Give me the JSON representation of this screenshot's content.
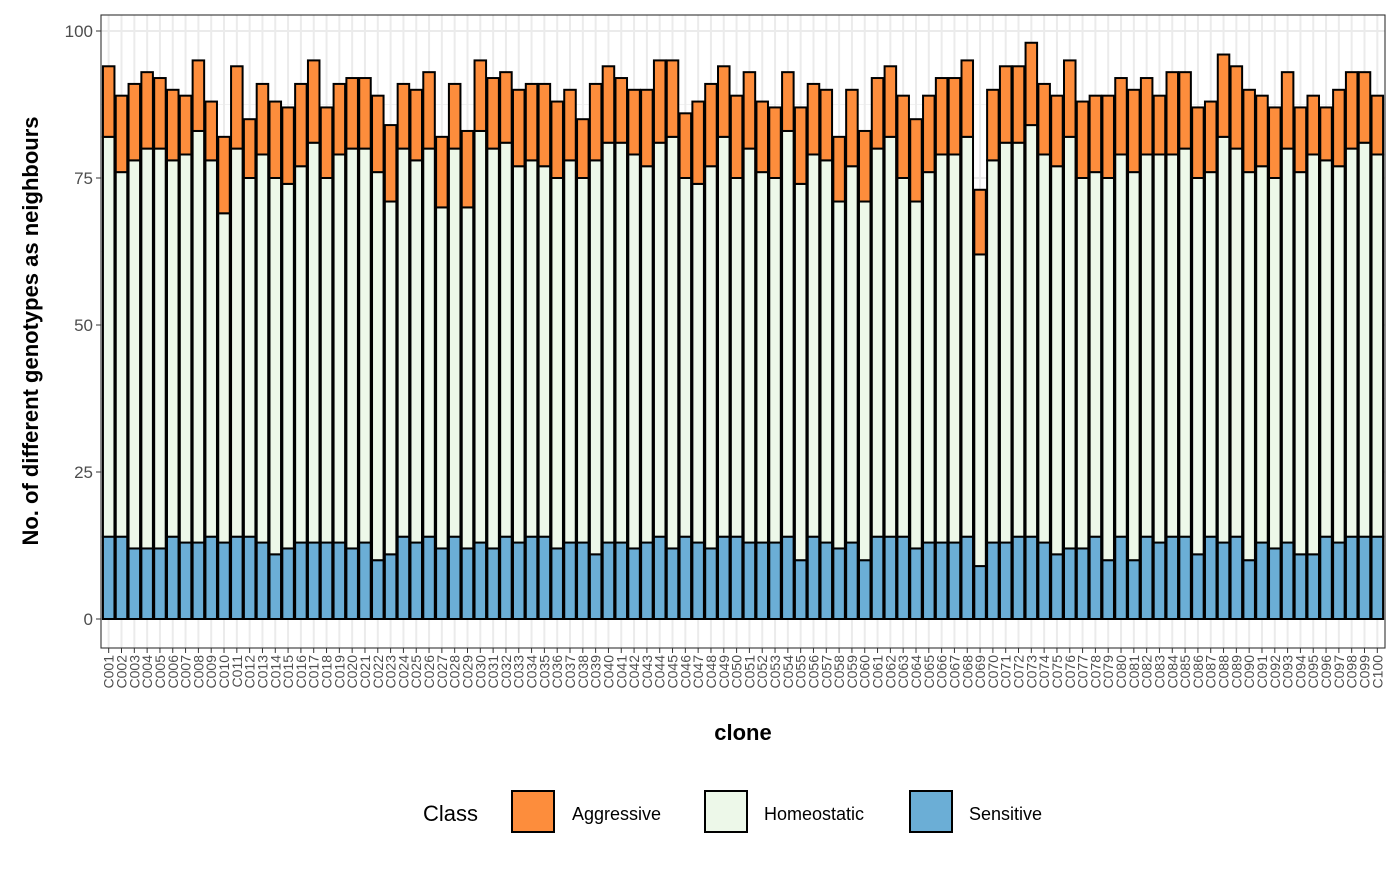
{
  "chart_data": {
    "type": "bar",
    "stacked": true,
    "xlabel": "clone",
    "ylabel": "No. of different genotypes as neighbours",
    "ylim": [
      -3,
      102
    ],
    "yticks": [
      0,
      25,
      50,
      75,
      100
    ],
    "ytick_labels": [
      "0",
      "25",
      "50",
      "75",
      "100"
    ],
    "grid": true,
    "legend": {
      "title": "Class",
      "placement": "bottom",
      "entries": [
        "Aggressive",
        "Homeostatic",
        "Sensitive"
      ]
    },
    "colors": {
      "Aggressive": "#fd8d3c",
      "Homeostatic": "#edf8e9",
      "Sensitive": "#6baed6"
    },
    "categories": [
      "C001",
      "C002",
      "C003",
      "C004",
      "C005",
      "C006",
      "C007",
      "C008",
      "C009",
      "C010",
      "C011",
      "C012",
      "C013",
      "C014",
      "C015",
      "C016",
      "C017",
      "C018",
      "C019",
      "C020",
      "C021",
      "C022",
      "C023",
      "C024",
      "C025",
      "C026",
      "C027",
      "C028",
      "C029",
      "C030",
      "C031",
      "C032",
      "C033",
      "C034",
      "C035",
      "C036",
      "C037",
      "C038",
      "C039",
      "C040",
      "C041",
      "C042",
      "C043",
      "C044",
      "C045",
      "C046",
      "C047",
      "C048",
      "C049",
      "C050",
      "C051",
      "C052",
      "C053",
      "C054",
      "C055",
      "C056",
      "C057",
      "C058",
      "C059",
      "C060",
      "C061",
      "C062",
      "C063",
      "C064",
      "C065",
      "C066",
      "C067",
      "C068",
      "C069",
      "C070",
      "C071",
      "C072",
      "C073",
      "C074",
      "C075",
      "C076",
      "C077",
      "C078",
      "C079",
      "C080",
      "C081",
      "C082",
      "C083",
      "C084",
      "C085",
      "C086",
      "C087",
      "C088",
      "C089",
      "C090",
      "C091",
      "C092",
      "C093",
      "C094",
      "C095",
      "C096",
      "C097",
      "C098",
      "C099",
      "C100"
    ],
    "series": [
      {
        "name": "Sensitive",
        "values": [
          14,
          14,
          12,
          12,
          12,
          14,
          13,
          13,
          14,
          13,
          14,
          14,
          13,
          11,
          12,
          13,
          13,
          13,
          13,
          12,
          13,
          10,
          11,
          14,
          13,
          14,
          12,
          14,
          12,
          13,
          12,
          14,
          13,
          14,
          14,
          12,
          13,
          13,
          11,
          13,
          13,
          12,
          13,
          14,
          12,
          14,
          13,
          12,
          14,
          14,
          13,
          13,
          13,
          14,
          10,
          14,
          13,
          12,
          13,
          10,
          14,
          14,
          14,
          12,
          13,
          13,
          13,
          14,
          9,
          13,
          13,
          14,
          14,
          13,
          11,
          12,
          12,
          14,
          10,
          14,
          10,
          14,
          13,
          14,
          14,
          11,
          14,
          13,
          14,
          10,
          13,
          12,
          13,
          11,
          11,
          14,
          13,
          14,
          14,
          14
        ]
      },
      {
        "name": "Homeostatic",
        "values": [
          68,
          62,
          66,
          68,
          68,
          64,
          66,
          70,
          64,
          56,
          66,
          61,
          66,
          64,
          62,
          64,
          68,
          62,
          66,
          68,
          67,
          66,
          60,
          66,
          65,
          66,
          58,
          66,
          58,
          70,
          68,
          67,
          64,
          64,
          63,
          63,
          65,
          62,
          67,
          68,
          68,
          67,
          64,
          67,
          70,
          61,
          61,
          65,
          68,
          61,
          67,
          63,
          62,
          69,
          64,
          65,
          65,
          59,
          64,
          61,
          66,
          68,
          61,
          59,
          63,
          66,
          66,
          68,
          53,
          65,
          68,
          67,
          70,
          66,
          66,
          70,
          63,
          62,
          65,
          65,
          66,
          65,
          66,
          65,
          66,
          64,
          62,
          69,
          66,
          66,
          64,
          63,
          67,
          65,
          68,
          64,
          64,
          66,
          67,
          65
        ]
      },
      {
        "name": "Aggressive",
        "values": [
          12,
          13,
          13,
          13,
          12,
          12,
          10,
          12,
          10,
          13,
          14,
          10,
          12,
          13,
          13,
          14,
          14,
          12,
          12,
          12,
          12,
          13,
          13,
          11,
          12,
          13,
          12,
          11,
          13,
          12,
          12,
          12,
          13,
          13,
          14,
          13,
          12,
          10,
          13,
          13,
          11,
          11,
          13,
          14,
          13,
          11,
          14,
          14,
          12,
          14,
          13,
          12,
          12,
          10,
          13,
          12,
          12,
          11,
          13,
          12,
          12,
          12,
          14,
          14,
          13,
          13,
          13,
          13,
          11,
          12,
          13,
          13,
          14,
          12,
          12,
          13,
          13,
          13,
          14,
          13,
          14,
          13,
          10,
          14,
          13,
          12,
          12,
          14,
          14,
          14,
          12,
          12,
          13,
          11,
          10,
          9,
          13,
          13,
          12,
          10
        ]
      }
    ]
  }
}
